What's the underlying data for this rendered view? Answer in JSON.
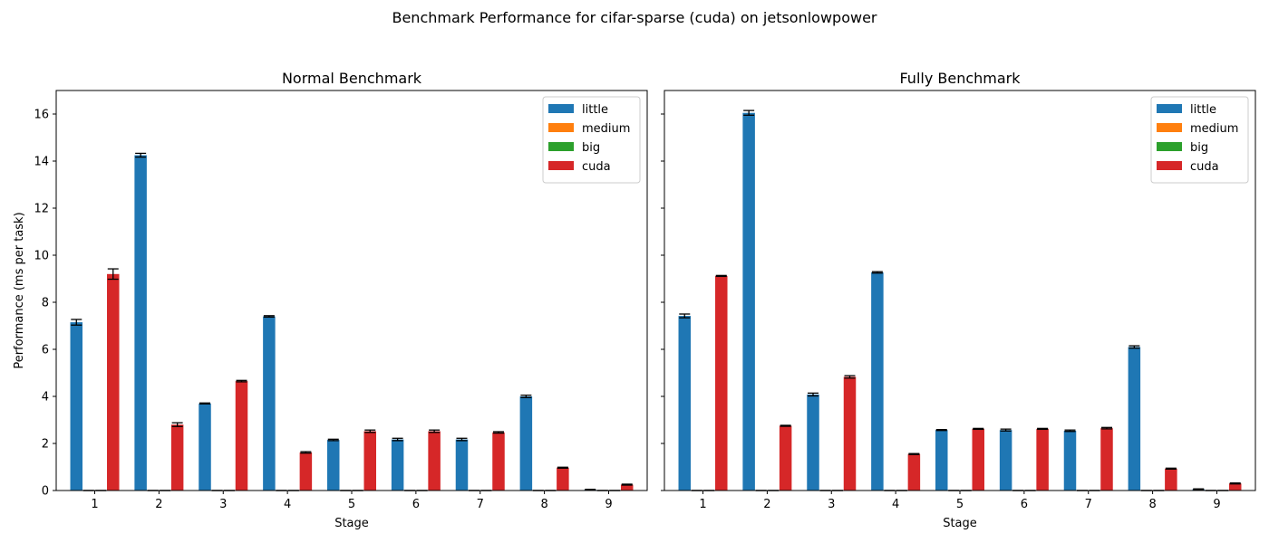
{
  "suptitle": "Benchmark Performance for cifar-sparse (cuda) on jetsonlowpower",
  "colors": {
    "little": "#1f77b4",
    "medium": "#ff7f0e",
    "big": "#2ca02c",
    "cuda": "#d62728"
  },
  "chart_data": [
    {
      "type": "bar",
      "title": "Normal Benchmark",
      "xlabel": "Stage",
      "ylabel": "Performance (ms per task)",
      "categories": [
        "1",
        "2",
        "3",
        "4",
        "5",
        "6",
        "7",
        "8",
        "9"
      ],
      "ylim": [
        0,
        17
      ],
      "yticks": [
        0,
        2,
        4,
        6,
        8,
        10,
        12,
        14,
        16
      ],
      "legend": "top-right",
      "series": [
        {
          "name": "little",
          "values": [
            7.15,
            14.25,
            3.7,
            7.4,
            2.15,
            2.17,
            2.17,
            4.0,
            0.03
          ],
          "errors": [
            0.12,
            0.08,
            0.02,
            0.03,
            0.03,
            0.05,
            0.05,
            0.05,
            0.02
          ]
        },
        {
          "name": "medium",
          "values": [
            0,
            0,
            0,
            0,
            0,
            0,
            0,
            0,
            0
          ],
          "errors": [
            0,
            0,
            0,
            0,
            0,
            0,
            0,
            0,
            0
          ]
        },
        {
          "name": "big",
          "values": [
            0,
            0,
            0,
            0,
            0,
            0,
            0,
            0,
            0
          ],
          "errors": [
            0,
            0,
            0,
            0,
            0,
            0,
            0,
            0,
            0
          ]
        },
        {
          "name": "cuda",
          "values": [
            9.2,
            2.8,
            4.65,
            1.62,
            2.52,
            2.52,
            2.47,
            0.97,
            0.25
          ],
          "errors": [
            0.22,
            0.08,
            0.03,
            0.03,
            0.05,
            0.05,
            0.03,
            0.02,
            0.02
          ]
        }
      ]
    },
    {
      "type": "bar",
      "title": "Fully Benchmark",
      "xlabel": "Stage",
      "ylabel": "",
      "categories": [
        "1",
        "2",
        "3",
        "4",
        "5",
        "6",
        "7",
        "8",
        "9"
      ],
      "ylim": [
        0,
        17
      ],
      "yticks": [
        0,
        2,
        4,
        6,
        8,
        10,
        12,
        14,
        16
      ],
      "legend": "top-right",
      "series": [
        {
          "name": "little",
          "values": [
            7.42,
            16.05,
            4.08,
            9.27,
            2.57,
            2.57,
            2.54,
            6.1,
            0.05
          ],
          "errors": [
            0.08,
            0.1,
            0.06,
            0.03,
            0.02,
            0.04,
            0.03,
            0.05,
            0.02
          ]
        },
        {
          "name": "medium",
          "values": [
            0,
            0,
            0,
            0,
            0,
            0,
            0,
            0,
            0
          ],
          "errors": [
            0,
            0,
            0,
            0,
            0,
            0,
            0,
            0,
            0
          ]
        },
        {
          "name": "big",
          "values": [
            0,
            0,
            0,
            0,
            0,
            0,
            0,
            0,
            0
          ],
          "errors": [
            0,
            0,
            0,
            0,
            0,
            0,
            0,
            0,
            0
          ]
        },
        {
          "name": "cuda",
          "values": [
            9.12,
            2.75,
            4.83,
            1.55,
            2.62,
            2.62,
            2.65,
            0.93,
            0.3
          ],
          "errors": [
            0.02,
            0.02,
            0.05,
            0.02,
            0.02,
            0.02,
            0.03,
            0.02,
            0.02
          ]
        }
      ]
    }
  ]
}
